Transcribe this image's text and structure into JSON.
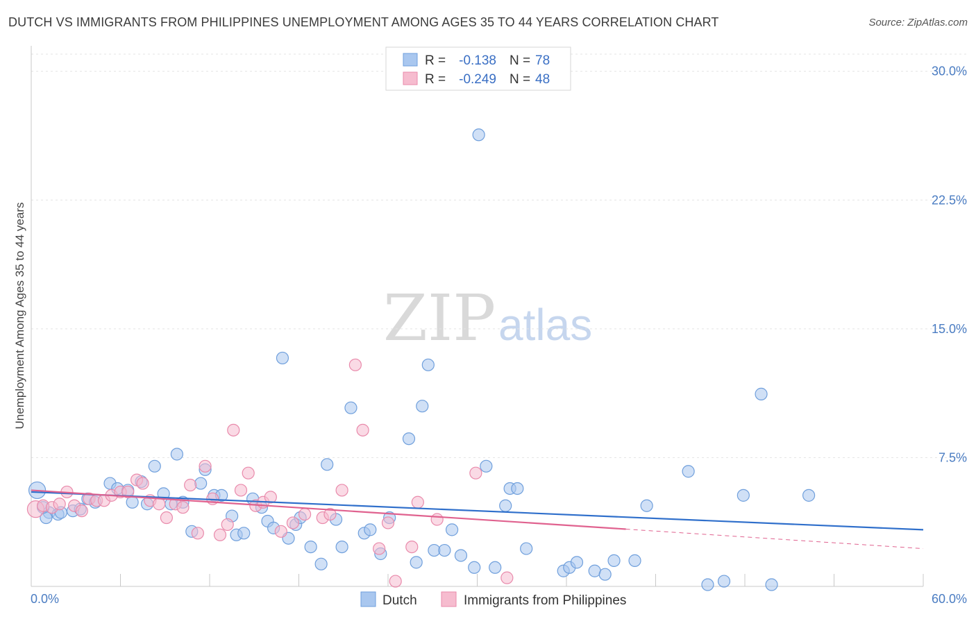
{
  "header": {
    "title": "DUTCH VS IMMIGRANTS FROM PHILIPPINES UNEMPLOYMENT AMONG AGES 35 TO 44 YEARS CORRELATION CHART",
    "source": "Source: ZipAtlas.com"
  },
  "watermark": {
    "zip": "ZIP",
    "atlas": "atlas"
  },
  "colors": {
    "dutch_fill": "#a9c7ef",
    "dutch_stroke": "#6f9fdc",
    "dutch_line": "#2f6fcb",
    "phil_fill": "#f6bccf",
    "phil_stroke": "#e98aab",
    "phil_line": "#e0628f",
    "grid": "#e3e3e3",
    "tick_text": "#4a7cc2"
  },
  "stats": [
    {
      "r_label": "R =",
      "r_value": "-0.138",
      "n_label": "N =",
      "n_value": "78"
    },
    {
      "r_label": "R =",
      "r_value": "-0.249",
      "n_label": "N =",
      "n_value": "48"
    }
  ],
  "chart_data": {
    "type": "scatter",
    "title": "DUTCH VS IMMIGRANTS FROM PHILIPPINES UNEMPLOYMENT AMONG AGES 35 TO 44 YEARS CORRELATION CHART",
    "xlabel": "",
    "ylabel": "Unemployment Among Ages 35 to 44 years",
    "xlim": [
      0,
      60
    ],
    "ylim": [
      0,
      31
    ],
    "x_tick_labels": [
      "0.0%",
      "60.0%"
    ],
    "y_ticks": [
      7.5,
      15.0,
      22.5,
      30.0
    ],
    "y_tick_labels": [
      "7.5%",
      "15.0%",
      "22.5%",
      "30.0%"
    ],
    "grid": "horizontal dashed",
    "legend_position": "bottom-center",
    "series": [
      {
        "name": "Dutch",
        "trend": {
          "x0": 0,
          "y0": 5.5,
          "x1": 60,
          "y1": 3.3,
          "solid_to": 60
        },
        "points": [
          [
            0.4,
            5.6
          ],
          [
            1.2,
            4.3
          ],
          [
            1.8,
            4.2
          ],
          [
            2.8,
            4.4
          ],
          [
            3.3,
            4.5
          ],
          [
            3.8,
            5.1
          ],
          [
            4.3,
            4.9
          ],
          [
            5.3,
            6.0
          ],
          [
            5.8,
            5.7
          ],
          [
            6.5,
            5.6
          ],
          [
            6.8,
            4.9
          ],
          [
            7.4,
            6.1
          ],
          [
            7.8,
            4.8
          ],
          [
            8.3,
            7.0
          ],
          [
            8.9,
            5.4
          ],
          [
            9.4,
            4.8
          ],
          [
            9.8,
            7.7
          ],
          [
            10.2,
            4.9
          ],
          [
            10.8,
            3.2
          ],
          [
            11.4,
            6.0
          ],
          [
            11.7,
            6.8
          ],
          [
            12.3,
            5.3
          ],
          [
            12.8,
            5.3
          ],
          [
            13.5,
            4.1
          ],
          [
            13.8,
            3.0
          ],
          [
            14.3,
            3.1
          ],
          [
            14.9,
            5.1
          ],
          [
            15.5,
            4.6
          ],
          [
            15.9,
            3.8
          ],
          [
            16.3,
            3.4
          ],
          [
            16.9,
            13.3
          ],
          [
            17.3,
            2.8
          ],
          [
            17.8,
            3.6
          ],
          [
            18.1,
            4.0
          ],
          [
            18.8,
            2.3
          ],
          [
            19.5,
            1.3
          ],
          [
            19.9,
            7.1
          ],
          [
            20.5,
            3.9
          ],
          [
            20.9,
            2.3
          ],
          [
            21.5,
            10.4
          ],
          [
            22.4,
            3.1
          ],
          [
            22.8,
            3.3
          ],
          [
            23.5,
            1.9
          ],
          [
            24.1,
            4.0
          ],
          [
            25.4,
            8.6
          ],
          [
            25.9,
            1.4
          ],
          [
            26.3,
            10.5
          ],
          [
            26.7,
            12.9
          ],
          [
            27.1,
            2.1
          ],
          [
            27.8,
            2.1
          ],
          [
            28.3,
            3.3
          ],
          [
            28.9,
            1.8
          ],
          [
            29.8,
            1.1
          ],
          [
            30.1,
            26.3
          ],
          [
            30.6,
            7.0
          ],
          [
            31.2,
            1.1
          ],
          [
            31.9,
            4.7
          ],
          [
            32.2,
            5.7
          ],
          [
            32.7,
            5.7
          ],
          [
            33.3,
            2.2
          ],
          [
            35.8,
            0.9
          ],
          [
            36.2,
            1.1
          ],
          [
            36.7,
            1.4
          ],
          [
            37.9,
            0.9
          ],
          [
            38.6,
            0.7
          ],
          [
            39.2,
            1.5
          ],
          [
            40.6,
            1.5
          ],
          [
            41.4,
            4.7
          ],
          [
            44.2,
            6.7
          ],
          [
            45.5,
            0.1
          ],
          [
            46.6,
            0.3
          ],
          [
            47.9,
            5.3
          ],
          [
            49.1,
            11.2
          ],
          [
            49.8,
            0.1
          ],
          [
            52.3,
            5.3
          ],
          [
            1.0,
            4.0
          ],
          [
            2.0,
            4.3
          ],
          [
            0.8,
            4.6
          ]
        ]
      },
      {
        "name": "Immigrants from Philippines",
        "trend": {
          "x0": 0,
          "y0": 5.6,
          "x1": 60,
          "y1": 2.2,
          "solid_to": 40
        },
        "points": [
          [
            0.3,
            4.5
          ],
          [
            0.8,
            4.7
          ],
          [
            1.4,
            4.6
          ],
          [
            1.9,
            4.8
          ],
          [
            2.4,
            5.5
          ],
          [
            2.9,
            4.7
          ],
          [
            3.4,
            4.4
          ],
          [
            3.9,
            5.1
          ],
          [
            4.4,
            5.0
          ],
          [
            4.9,
            5.0
          ],
          [
            5.4,
            5.3
          ],
          [
            6.0,
            5.5
          ],
          [
            6.5,
            5.5
          ],
          [
            7.1,
            6.2
          ],
          [
            7.5,
            6.0
          ],
          [
            8.0,
            5.0
          ],
          [
            8.6,
            4.8
          ],
          [
            9.1,
            4.0
          ],
          [
            9.7,
            4.8
          ],
          [
            10.2,
            4.6
          ],
          [
            10.7,
            5.9
          ],
          [
            11.2,
            3.1
          ],
          [
            11.7,
            7.0
          ],
          [
            12.2,
            5.1
          ],
          [
            12.7,
            3.0
          ],
          [
            13.2,
            3.6
          ],
          [
            13.6,
            9.1
          ],
          [
            14.1,
            5.6
          ],
          [
            14.6,
            6.6
          ],
          [
            15.1,
            4.7
          ],
          [
            15.6,
            4.9
          ],
          [
            16.1,
            5.2
          ],
          [
            16.8,
            3.2
          ],
          [
            17.6,
            3.7
          ],
          [
            18.4,
            4.2
          ],
          [
            19.6,
            4.0
          ],
          [
            20.1,
            4.2
          ],
          [
            20.9,
            5.6
          ],
          [
            21.8,
            12.9
          ],
          [
            22.3,
            9.1
          ],
          [
            23.4,
            2.2
          ],
          [
            24.0,
            3.7
          ],
          [
            24.5,
            0.3
          ],
          [
            25.6,
            2.3
          ],
          [
            26.0,
            4.9
          ],
          [
            27.3,
            3.9
          ],
          [
            29.9,
            6.6
          ],
          [
            32.0,
            0.5
          ]
        ]
      }
    ]
  },
  "legend": [
    {
      "label": "Dutch"
    },
    {
      "label": "Immigrants from Philippines"
    }
  ]
}
